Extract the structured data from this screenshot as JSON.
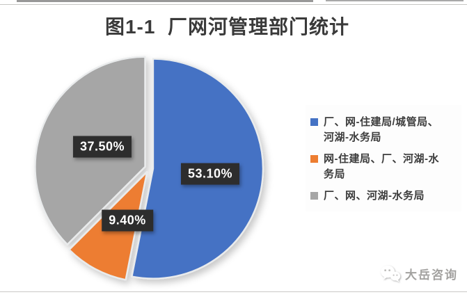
{
  "chart_data": {
    "type": "pie",
    "title": "图1-1  厂网河管理部门统计",
    "legend_position": "right",
    "start_angle_deg": 0,
    "direction": "clockwise",
    "unit": "%",
    "slices": [
      {
        "label": "厂、网-住建局/城管局、河湖-水务局",
        "value": 53.1,
        "display": "53.10%",
        "color": "#4472C4"
      },
      {
        "label": "网-住建局、厂、河湖-水务局",
        "value": 9.4,
        "display": "9.40%",
        "color": "#ED7D31"
      },
      {
        "label": "厂、网、河湖-水务局",
        "value": 37.5,
        "display": "37.50%",
        "color": "#A6A6A6"
      }
    ],
    "data_label_style": "dark-box-white-text"
  },
  "watermark": {
    "icon": "wechat-icon",
    "text": "大岳咨询"
  },
  "colors": {
    "background_top": "#f3f2f0",
    "background_bottom": "#cfcecc",
    "title_text": "#3a3a3a",
    "legend_text": "#3d3d3d",
    "label_box": "#2d2d2d",
    "label_text": "#ffffff"
  }
}
